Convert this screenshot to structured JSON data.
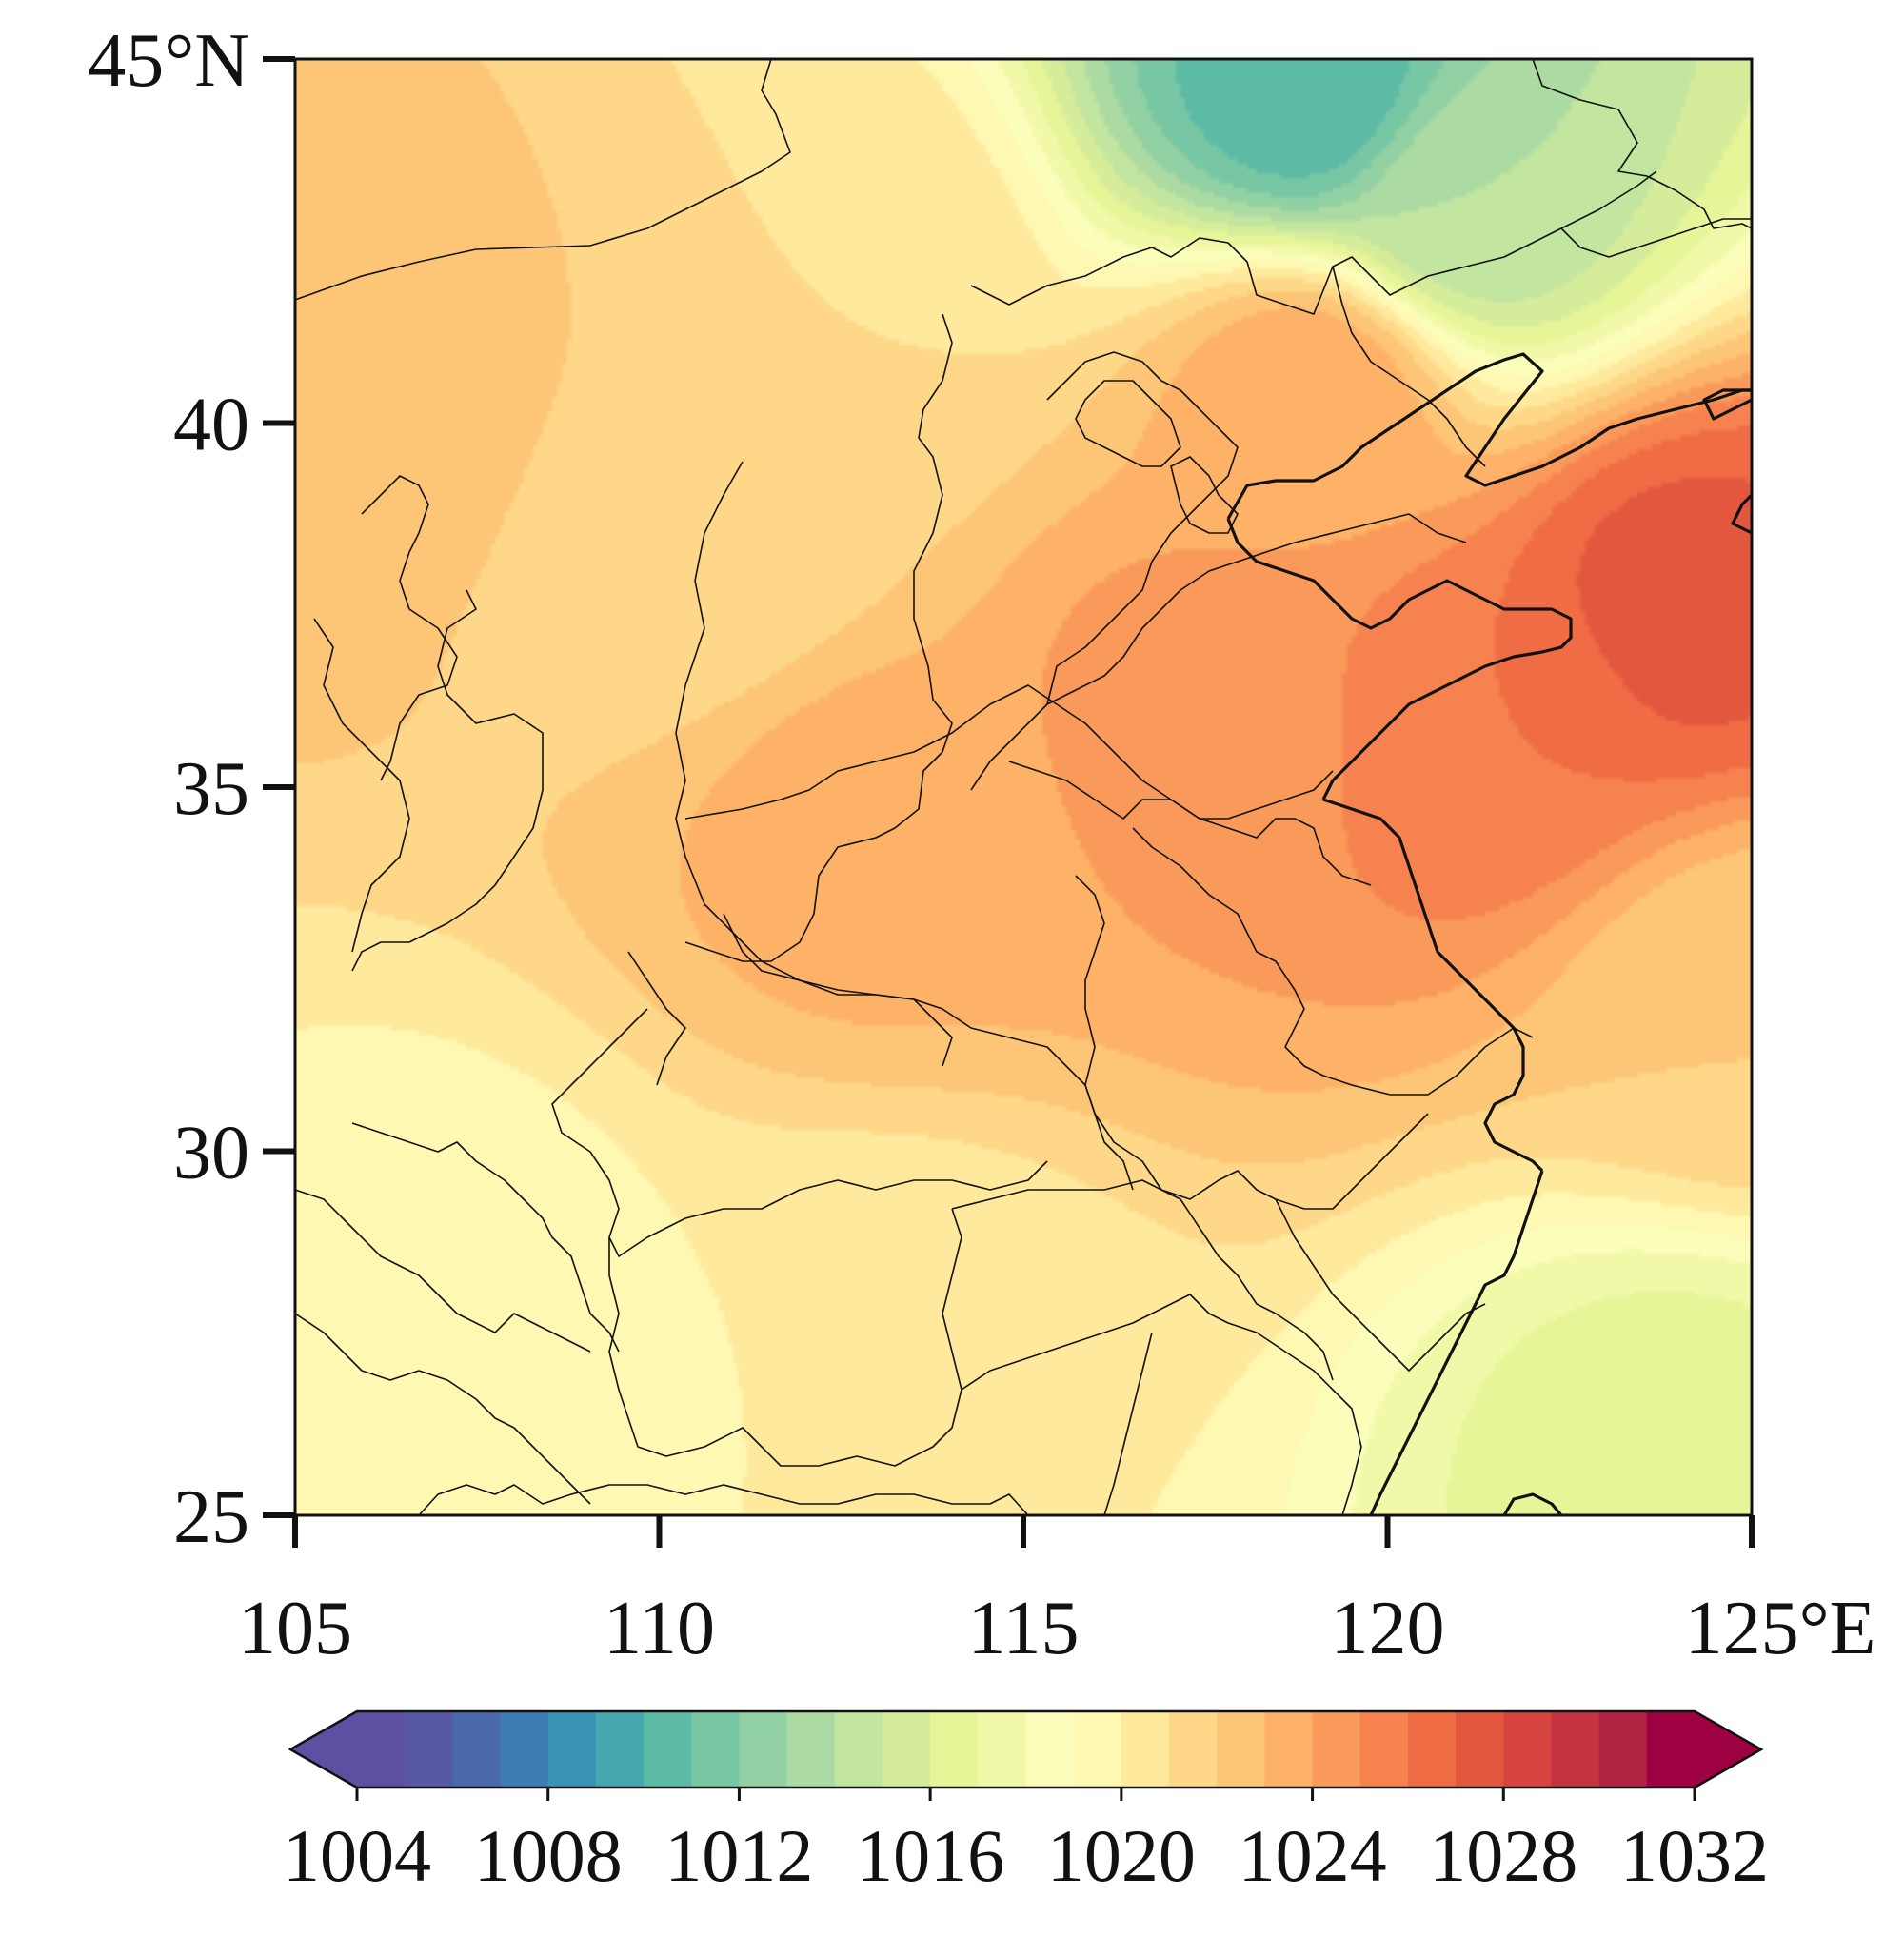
{
  "map": {
    "lon_range": [
      105,
      125
    ],
    "lat_range": [
      25,
      45
    ],
    "x_ticks": [
      105,
      110,
      115,
      120,
      125
    ],
    "y_ticks": [
      25,
      30,
      35,
      40,
      45
    ],
    "x_tick_labels": [
      "105",
      "110",
      "115",
      "120",
      "125°E"
    ],
    "y_tick_labels": [
      "25",
      "30",
      "35",
      "40",
      "45°N"
    ],
    "field_pattern": [
      {
        "lon": 124.0,
        "lat": 37.5,
        "value": 1027.5
      },
      {
        "lon": 121.5,
        "lat": 36.0,
        "value": 1026.0
      },
      {
        "lon": 117.5,
        "lat": 36.0,
        "value": 1024.5
      },
      {
        "lon": 113.0,
        "lat": 34.5,
        "value": 1023.5
      },
      {
        "lon": 106.0,
        "lat": 40.5,
        "value": 1023.0
      },
      {
        "lon": 119.0,
        "lat": 40.5,
        "value": 1024.0
      },
      {
        "lon": 112.5,
        "lat": 42.0,
        "value": 1021.0
      },
      {
        "lon": 119.0,
        "lat": 44.5,
        "value": 1010.0
      },
      {
        "lon": 121.0,
        "lat": 43.0,
        "value": 1014.0
      },
      {
        "lon": 113.0,
        "lat": 27.0,
        "value": 1020.0
      },
      {
        "lon": 124.0,
        "lat": 26.0,
        "value": 1016.5
      },
      {
        "lon": 107.0,
        "lat": 28.0,
        "value": 1019.5
      },
      {
        "lon": 110.5,
        "lat": 38.5,
        "value": 1021.0
      },
      {
        "lon": 125.0,
        "lat": 32.0,
        "value": 1022.0
      }
    ]
  },
  "colorbar": {
    "min": 1004,
    "max": 1032,
    "step": 1,
    "tick_labels": [
      "1004",
      "1008",
      "1012",
      "1016",
      "1020",
      "1024",
      "1028",
      "1032"
    ],
    "colors": [
      "#5e4fa2",
      "#5758a6",
      "#4a69ad",
      "#3d7db3",
      "#3a92b5",
      "#45a8b0",
      "#5dbaa5",
      "#77c7a4",
      "#92d1a3",
      "#abdba2",
      "#c2e59f",
      "#d5ec9b",
      "#e6f598",
      "#f1f9a8",
      "#fbfdba",
      "#fef8b2",
      "#fee99d",
      "#fed888",
      "#fdc576",
      "#fdb267",
      "#fa9a5a",
      "#f6834f",
      "#f06c45",
      "#e4573f",
      "#d6443f",
      "#c53341",
      "#b12343",
      "#9e0142"
    ]
  }
}
